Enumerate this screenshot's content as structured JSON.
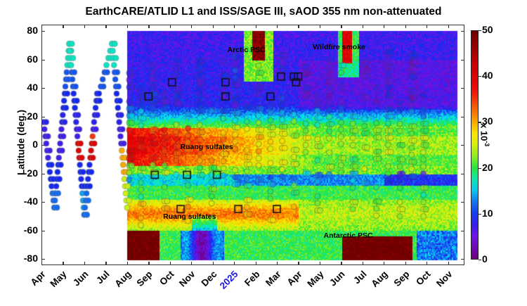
{
  "chart_data": {
    "type": "heatmap",
    "title": "EarthCARE/ATLID L1 and ISS/SAGE III, sAOD 355 nm non-attenuated",
    "xlabel": "",
    "ylabel": "Latitude (deg.)",
    "ylim": [
      -85,
      85
    ],
    "yticks": [
      80,
      60,
      40,
      20,
      0,
      -20,
      -40,
      -60,
      -80
    ],
    "xtick_labels": [
      "Apr",
      "May",
      "Jun",
      "Jul",
      "Aug",
      "Sep",
      "Oct",
      "Nov",
      "Dec",
      "2025",
      "Feb",
      "Mar",
      "Apr",
      "May",
      "Jun",
      "Jul",
      "Aug",
      "Sep",
      "Oct",
      "Nov"
    ],
    "xtick_year_label": "2025",
    "x_range": [
      "2024-04",
      "2025-11"
    ],
    "heatmap_start": "Aug 2024",
    "colorbar": {
      "min": 0,
      "max": 50,
      "ticks": [
        0,
        10,
        20,
        30,
        40,
        50
      ],
      "label": "x 10^-3",
      "colormap": "jet-like (purple→blue→cyan→green→yellow→red→dark red)"
    },
    "annotations": [
      {
        "text": "Arctic PSC",
        "month_index": 10.0,
        "lat": 66
      },
      {
        "text": "Wildfire smoke",
        "month_index": 14.0,
        "lat": 68
      },
      {
        "text": "Ruang sulfates",
        "month_index": 7.8,
        "lat": -2
      },
      {
        "text": "Ruang sulfates",
        "month_index": 7.0,
        "lat": -51
      },
      {
        "text": "Antarctic PSC",
        "month_index": 14.5,
        "lat": -64
      }
    ],
    "description": "Heatmap of ATLID stratospheric AOD (x10^-3) vs time and latitude; circles are ISS/SAGE III sAOD samples colored by the same scale; black squares mark selected collocations.",
    "features": [
      {
        "name": "Ruang sulfates (tropical)",
        "lat_range": [
          -12,
          10
        ],
        "period": "Aug 2024–Feb 2025",
        "approx_value": 35
      },
      {
        "name": "Ruang sulfates (southern)",
        "lat_range": [
          -60,
          -40
        ],
        "period": "Aug 2024–Mar 2025",
        "approx_value": 32
      },
      {
        "name": "Arctic PSC",
        "lat_range": [
          60,
          85
        ],
        "period": "Jan–Feb 2025",
        "approx_value": 50
      },
      {
        "name": "Wildfire smoke",
        "lat_range": [
          50,
          85
        ],
        "period": "Jun 2025",
        "approx_value": 38
      },
      {
        "name": "Antarctic PSC",
        "lat_range": [
          -85,
          -62
        ],
        "period": "Jun–Sep 2025",
        "approx_value": 50
      },
      {
        "name": "Northern mid-latitudes background",
        "lat_range": [
          25,
          80
        ],
        "approx_value": 8
      },
      {
        "name": "Southern subtropical minimum",
        "lat_range": [
          -25,
          -18
        ],
        "period": "2025",
        "approx_value": 12
      }
    ],
    "squares": [
      {
        "month_index": 5.0,
        "lat": 34
      },
      {
        "month_index": 6.1,
        "lat": 44
      },
      {
        "month_index": 8.6,
        "lat": 44
      },
      {
        "month_index": 8.6,
        "lat": 34
      },
      {
        "month_index": 10.7,
        "lat": 34
      },
      {
        "month_index": 11.2,
        "lat": 48
      },
      {
        "month_index": 11.8,
        "lat": 48
      },
      {
        "month_index": 11.9,
        "lat": 44
      },
      {
        "month_index": 12.0,
        "lat": 48
      },
      {
        "month_index": 5.3,
        "lat": -21
      },
      {
        "month_index": 6.8,
        "lat": -21
      },
      {
        "month_index": 8.2,
        "lat": -21
      },
      {
        "month_index": 6.5,
        "lat": -45
      },
      {
        "month_index": 9.2,
        "lat": -45
      },
      {
        "month_index": 11.0,
        "lat": -45
      }
    ]
  }
}
